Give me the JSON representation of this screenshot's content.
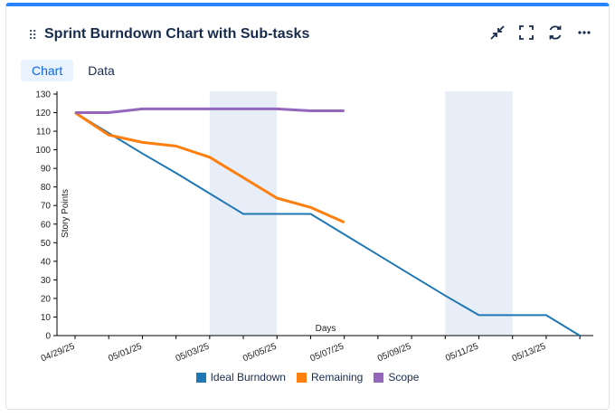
{
  "card": {
    "title": "Sprint Burndown Chart with Sub-tasks",
    "drag_glyph": "⠿",
    "actions": [
      {
        "name": "collapse-icon",
        "glyph": "⤡"
      },
      {
        "name": "fullscreen-icon",
        "glyph": "⛶"
      },
      {
        "name": "refresh-icon",
        "glyph": "⟳"
      },
      {
        "name": "more-icon",
        "glyph": "⋯"
      }
    ]
  },
  "tabs": [
    {
      "label": "Chart",
      "active": true
    },
    {
      "label": "Data",
      "active": false
    }
  ],
  "colors": {
    "ideal": "#1f77b4",
    "remaining": "#ff7f0e",
    "scope": "#9467bd",
    "weekend": "#e8eef8",
    "accent": "#2684ff"
  },
  "chart_data": {
    "type": "line",
    "xlabel": "Days",
    "ylabel": "Story Points",
    "ylim": [
      0,
      130
    ],
    "yticks": [
      0,
      10,
      20,
      30,
      40,
      50,
      60,
      70,
      80,
      90,
      100,
      110,
      120,
      130
    ],
    "xlim": [
      "04/29/25",
      "05/14/25"
    ],
    "xticks": [
      "04/29/25",
      "05/01/25",
      "05/03/25",
      "05/05/25",
      "05/07/25",
      "05/09/25",
      "05/11/25",
      "05/13/25"
    ],
    "weekends": [
      [
        "05/03/25",
        "05/05/25"
      ],
      [
        "05/10/25",
        "05/12/25"
      ]
    ],
    "series": [
      {
        "name": "Ideal Burndown",
        "x": [
          "04/29/25",
          "04/30/25",
          "05/01/25",
          "05/02/25",
          "05/03/25",
          "05/04/25",
          "05/05/25",
          "05/06/25",
          "05/07/25",
          "05/08/25",
          "05/09/25",
          "05/10/25",
          "05/11/25",
          "05/12/25",
          "05/13/25",
          "05/14/25"
        ],
        "values": [
          120,
          109,
          98,
          87.5,
          76.5,
          65.5,
          65.5,
          65.5,
          54.5,
          43.5,
          32.5,
          21.5,
          11,
          11,
          11,
          0
        ]
      },
      {
        "name": "Remaining",
        "x": [
          "04/29/25",
          "04/30/25",
          "05/01/25",
          "05/02/25",
          "05/03/25",
          "05/04/25",
          "05/05/25",
          "05/06/25",
          "05/07/25"
        ],
        "values": [
          120,
          108,
          104,
          102,
          96,
          85,
          74,
          69,
          61
        ]
      },
      {
        "name": "Scope",
        "x": [
          "04/29/25",
          "04/30/25",
          "05/01/25",
          "05/02/25",
          "05/03/25",
          "05/04/25",
          "05/05/25",
          "05/06/25",
          "05/07/25"
        ],
        "values": [
          120,
          120,
          122,
          122,
          122,
          122,
          122,
          121,
          121
        ]
      }
    ]
  }
}
